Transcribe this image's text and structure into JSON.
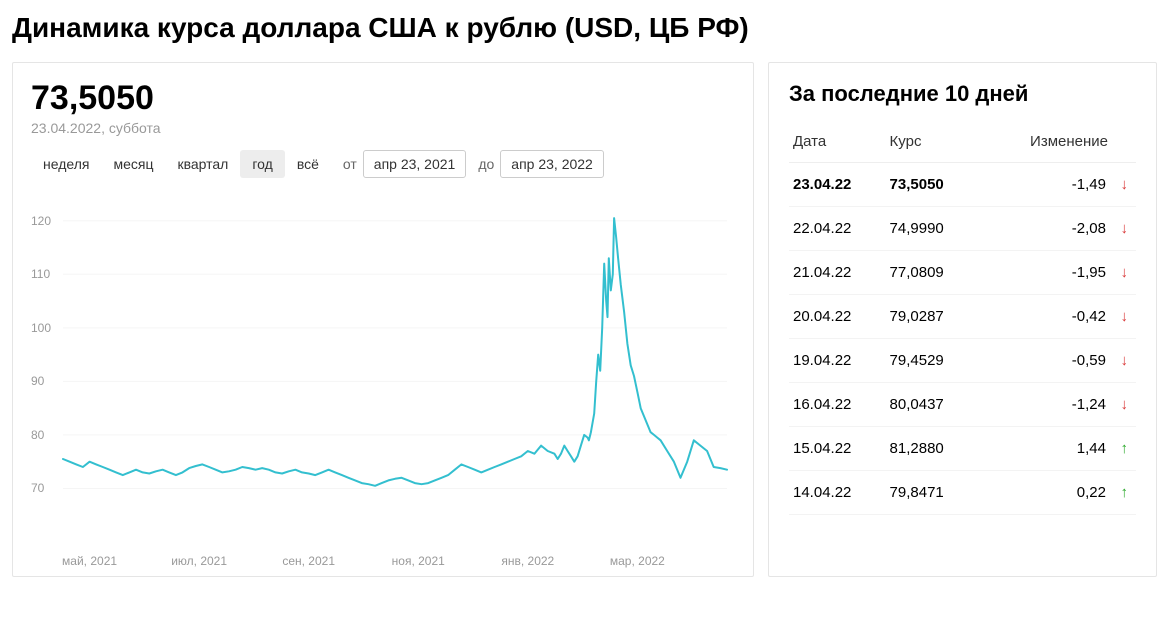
{
  "title": "Динамика курса доллара США к рублю (USD, ЦБ РФ)",
  "chart_panel": {
    "current_rate": "73,5050",
    "current_date": "23.04.2022, суббота",
    "range_tabs": [
      {
        "label": "неделя",
        "active": false
      },
      {
        "label": "месяц",
        "active": false
      },
      {
        "label": "квартал",
        "active": false
      },
      {
        "label": "год",
        "active": true
      },
      {
        "label": "всё",
        "active": false
      }
    ],
    "from_label": "от",
    "to_label": "до",
    "from_date": "апр 23, 2021",
    "to_date": "апр 23, 2022",
    "chart": {
      "type": "line",
      "line_color": "#33bfcf",
      "grid_color": "#f5f5f5",
      "axis_text_color": "#999999",
      "background_color": "#ffffff",
      "ylim": [
        60,
        125
      ],
      "y_ticks": [
        70,
        80,
        90,
        100,
        110,
        120
      ],
      "x_ticks": [
        "май, 2021",
        "июл, 2021",
        "сен, 2021",
        "ноя, 2021",
        "янв, 2022",
        "мар, 2022"
      ],
      "x_tick_positions": [
        0.04,
        0.205,
        0.37,
        0.535,
        0.7,
        0.865
      ],
      "series": [
        [
          0.0,
          75.5
        ],
        [
          0.01,
          75.0
        ],
        [
          0.02,
          74.5
        ],
        [
          0.03,
          74.0
        ],
        [
          0.04,
          75.0
        ],
        [
          0.05,
          74.5
        ],
        [
          0.06,
          74.0
        ],
        [
          0.07,
          73.5
        ],
        [
          0.08,
          73.0
        ],
        [
          0.09,
          72.5
        ],
        [
          0.1,
          73.0
        ],
        [
          0.11,
          73.5
        ],
        [
          0.12,
          73.0
        ],
        [
          0.13,
          72.8
        ],
        [
          0.14,
          73.2
        ],
        [
          0.15,
          73.5
        ],
        [
          0.16,
          73.0
        ],
        [
          0.17,
          72.5
        ],
        [
          0.18,
          73.0
        ],
        [
          0.19,
          73.8
        ],
        [
          0.2,
          74.2
        ],
        [
          0.21,
          74.5
        ],
        [
          0.22,
          74.0
        ],
        [
          0.23,
          73.5
        ],
        [
          0.24,
          73.0
        ],
        [
          0.25,
          73.2
        ],
        [
          0.26,
          73.5
        ],
        [
          0.27,
          74.0
        ],
        [
          0.28,
          73.8
        ],
        [
          0.29,
          73.5
        ],
        [
          0.3,
          73.8
        ],
        [
          0.31,
          73.5
        ],
        [
          0.32,
          73.0
        ],
        [
          0.33,
          72.8
        ],
        [
          0.34,
          73.2
        ],
        [
          0.35,
          73.5
        ],
        [
          0.36,
          73.0
        ],
        [
          0.37,
          72.8
        ],
        [
          0.38,
          72.5
        ],
        [
          0.39,
          73.0
        ],
        [
          0.4,
          73.5
        ],
        [
          0.41,
          73.0
        ],
        [
          0.42,
          72.5
        ],
        [
          0.43,
          72.0
        ],
        [
          0.44,
          71.5
        ],
        [
          0.45,
          71.0
        ],
        [
          0.46,
          70.8
        ],
        [
          0.47,
          70.5
        ],
        [
          0.48,
          71.0
        ],
        [
          0.49,
          71.5
        ],
        [
          0.5,
          71.8
        ],
        [
          0.51,
          72.0
        ],
        [
          0.52,
          71.5
        ],
        [
          0.53,
          71.0
        ],
        [
          0.54,
          70.8
        ],
        [
          0.55,
          71.0
        ],
        [
          0.56,
          71.5
        ],
        [
          0.57,
          72.0
        ],
        [
          0.58,
          72.5
        ],
        [
          0.59,
          73.5
        ],
        [
          0.6,
          74.5
        ],
        [
          0.61,
          74.0
        ],
        [
          0.62,
          73.5
        ],
        [
          0.63,
          73.0
        ],
        [
          0.64,
          73.5
        ],
        [
          0.65,
          74.0
        ],
        [
          0.66,
          74.5
        ],
        [
          0.67,
          75.0
        ],
        [
          0.68,
          75.5
        ],
        [
          0.69,
          76.0
        ],
        [
          0.7,
          77.0
        ],
        [
          0.71,
          76.5
        ],
        [
          0.72,
          78.0
        ],
        [
          0.73,
          77.0
        ],
        [
          0.74,
          76.5
        ],
        [
          0.745,
          75.5
        ],
        [
          0.75,
          76.5
        ],
        [
          0.755,
          78.0
        ],
        [
          0.76,
          77.0
        ],
        [
          0.765,
          76.0
        ],
        [
          0.77,
          75.0
        ],
        [
          0.775,
          76.0
        ],
        [
          0.78,
          78.0
        ],
        [
          0.785,
          80.0
        ],
        [
          0.79,
          79.5
        ],
        [
          0.792,
          79.0
        ],
        [
          0.795,
          80.5
        ],
        [
          0.8,
          84.0
        ],
        [
          0.803,
          90.0
        ],
        [
          0.806,
          95.0
        ],
        [
          0.809,
          92.0
        ],
        [
          0.812,
          100.0
        ],
        [
          0.815,
          112.0
        ],
        [
          0.818,
          105.0
        ],
        [
          0.82,
          102.0
        ],
        [
          0.822,
          113.0
        ],
        [
          0.825,
          107.0
        ],
        [
          0.828,
          110.0
        ],
        [
          0.83,
          120.5
        ],
        [
          0.833,
          117.0
        ],
        [
          0.836,
          113.0
        ],
        [
          0.84,
          108.0
        ],
        [
          0.845,
          103.0
        ],
        [
          0.85,
          97.0
        ],
        [
          0.855,
          93.0
        ],
        [
          0.86,
          91.0
        ],
        [
          0.865,
          88.0
        ],
        [
          0.87,
          85.0
        ],
        [
          0.875,
          83.5
        ],
        [
          0.88,
          82.0
        ],
        [
          0.885,
          80.5
        ],
        [
          0.89,
          80.0
        ],
        [
          0.895,
          79.5
        ],
        [
          0.9,
          79.0
        ],
        [
          0.91,
          77.0
        ],
        [
          0.92,
          75.0
        ],
        [
          0.93,
          72.0
        ],
        [
          0.94,
          75.0
        ],
        [
          0.95,
          79.0
        ],
        [
          0.96,
          78.0
        ],
        [
          0.97,
          77.0
        ],
        [
          0.98,
          74.0
        ],
        [
          0.99,
          73.8
        ],
        [
          1.0,
          73.5
        ]
      ]
    }
  },
  "table_panel": {
    "title": "За последние 10 дней",
    "columns": {
      "date": "Дата",
      "rate": "Курс",
      "change": "Изменение"
    },
    "rows": [
      {
        "date": "23.04.22",
        "rate": "73,5050",
        "change": "-1,49",
        "dir": "down",
        "bold": true
      },
      {
        "date": "22.04.22",
        "rate": "74,9990",
        "change": "-2,08",
        "dir": "down",
        "bold": false
      },
      {
        "date": "21.04.22",
        "rate": "77,0809",
        "change": "-1,95",
        "dir": "down",
        "bold": false
      },
      {
        "date": "20.04.22",
        "rate": "79,0287",
        "change": "-0,42",
        "dir": "down",
        "bold": false
      },
      {
        "date": "19.04.22",
        "rate": "79,4529",
        "change": "-0,59",
        "dir": "down",
        "bold": false
      },
      {
        "date": "16.04.22",
        "rate": "80,0437",
        "change": "-1,24",
        "dir": "down",
        "bold": false
      },
      {
        "date": "15.04.22",
        "rate": "81,2880",
        "change": "1,44",
        "dir": "up",
        "bold": false
      },
      {
        "date": "14.04.22",
        "rate": "79,8471",
        "change": "0,22",
        "dir": "up",
        "bold": false
      }
    ]
  }
}
